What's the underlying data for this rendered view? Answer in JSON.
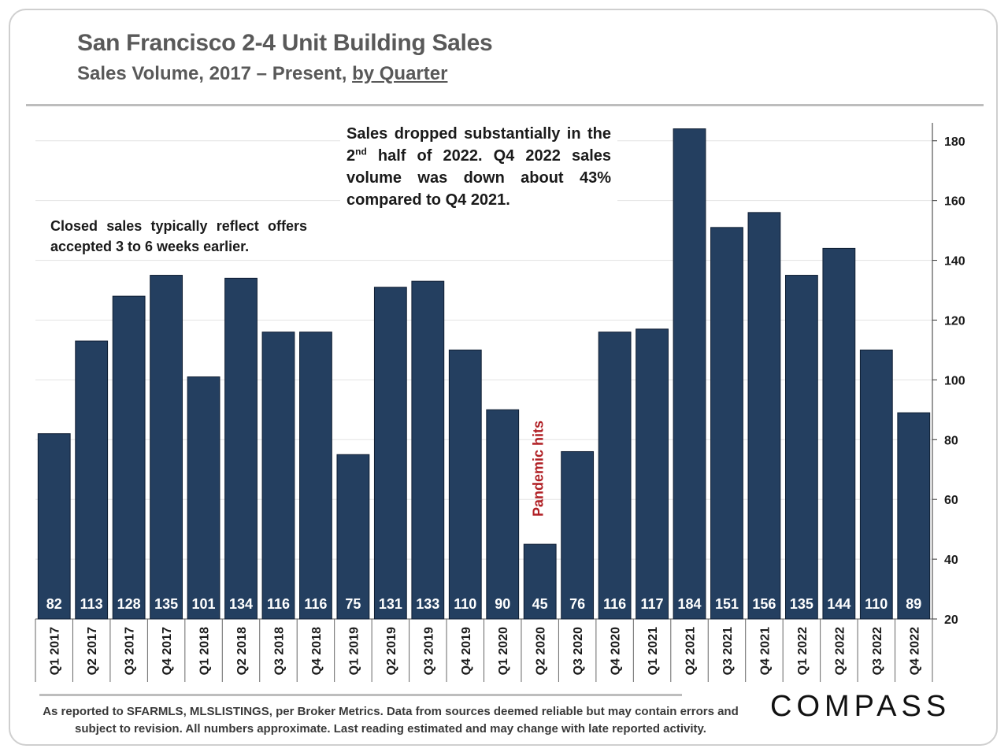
{
  "header": {
    "title": "San Francisco 2-4 Unit Building Sales",
    "subtitle_main": "Sales Volume, 2017 – Present, ",
    "subtitle_link": "by Quarter"
  },
  "annotations": {
    "left_note": "Closed sales typically reflect offers accepted 3 to 6 weeks earlier.",
    "top_note_pre": "Sales dropped substantially in the 2",
    "top_note_sup": "nd",
    "top_note_post": " half of 2022. Q4 2022 sales volume was down about 43% compared to Q4 2021.",
    "pandemic": "Pandemic hits"
  },
  "footer": {
    "source_line1": "As reported to SFARMLS, MLSLISTINGS, per Broker Metrics. Data from sources deemed reliable but may contain errors and",
    "source_line2": "subject to revision. All numbers approximate.  Last reading estimated and may change with late reported activity.",
    "logo": "COMPASS"
  },
  "colors": {
    "bar": "#243f60",
    "bar_label": "#ffffff",
    "pandemic": "#b01f24",
    "grid": "#e3e3e3",
    "axis_text": "#1a1a1a"
  },
  "chart_data": {
    "type": "bar",
    "title": "San Francisco 2-4 Unit Building Sales",
    "xlabel": "",
    "ylabel": "",
    "categories": [
      "Q1 2017",
      "Q2 2017",
      "Q3 2017",
      "Q4 2017",
      "Q1 2018",
      "Q2 2018",
      "Q3 2018",
      "Q4 2018",
      "Q1 2019",
      "Q2 2019",
      "Q3 2019",
      "Q4 2019",
      "Q1 2020",
      "Q2 2020",
      "Q3 2020",
      "Q4 2020",
      "Q1 2021",
      "Q2 2021",
      "Q3 2021",
      "Q4 2021",
      "Q1 2022",
      "Q2 2022",
      "Q3 2022",
      "Q4 2022"
    ],
    "values": [
      82,
      113,
      128,
      135,
      101,
      134,
      116,
      116,
      75,
      131,
      133,
      110,
      90,
      45,
      76,
      116,
      117,
      184,
      151,
      156,
      135,
      144,
      110,
      89
    ],
    "ylim": [
      20,
      186
    ],
    "yticks": [
      20,
      40,
      60,
      80,
      100,
      120,
      140,
      160,
      180
    ],
    "y_axis_side": "right",
    "grid": true
  }
}
